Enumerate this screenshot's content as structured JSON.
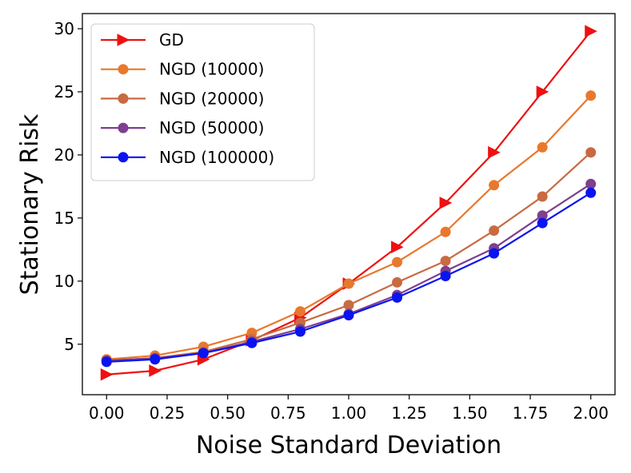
{
  "chart_data": {
    "type": "line",
    "title": "",
    "xlabel": "Noise Standard Deviation",
    "ylabel": "Stationary Risk",
    "xlim": [
      -0.1,
      2.1
    ],
    "ylim": [
      1.0,
      31.2
    ],
    "xticks": [
      "0.00",
      "0.25",
      "0.50",
      "0.75",
      "1.00",
      "1.25",
      "1.50",
      "1.75",
      "2.00"
    ],
    "xtick_values": [
      0,
      0.25,
      0.5,
      0.75,
      1.0,
      1.25,
      1.5,
      1.75,
      2.0
    ],
    "yticks": [
      "5",
      "10",
      "15",
      "20",
      "25",
      "30"
    ],
    "ytick_values": [
      5,
      10,
      15,
      20,
      25,
      30
    ],
    "grid": false,
    "legend_position": "top-left",
    "x": [
      0.0,
      0.2,
      0.4,
      0.6,
      0.8,
      1.0,
      1.2,
      1.4,
      1.6,
      1.8,
      2.0
    ],
    "series": [
      {
        "name": "GD",
        "color": "#ee1111",
        "marker": "triangle-right",
        "values": [
          2.6,
          2.9,
          3.8,
          5.3,
          7.1,
          9.8,
          12.7,
          16.2,
          20.2,
          25.0,
          29.8
        ]
      },
      {
        "name": "NGD (10000)",
        "color": "#e8782d",
        "marker": "circle",
        "values": [
          3.8,
          4.1,
          4.8,
          5.9,
          7.6,
          9.8,
          11.5,
          13.9,
          17.6,
          20.6,
          24.7
        ]
      },
      {
        "name": "NGD (20000)",
        "color": "#c86a42",
        "marker": "circle",
        "values": [
          3.7,
          3.9,
          4.4,
          5.4,
          6.7,
          8.1,
          9.9,
          11.6,
          14.0,
          16.7,
          20.2
        ]
      },
      {
        "name": "NGD (50000)",
        "color": "#7e3f8e",
        "marker": "circle",
        "values": [
          3.7,
          3.9,
          4.3,
          5.2,
          6.2,
          7.4,
          8.9,
          10.8,
          12.6,
          15.2,
          17.7
        ]
      },
      {
        "name": "NGD (100000)",
        "color": "#0a14f0",
        "marker": "circle",
        "values": [
          3.6,
          3.8,
          4.3,
          5.1,
          6.0,
          7.3,
          8.7,
          10.4,
          12.2,
          14.6,
          17.0
        ]
      }
    ]
  }
}
